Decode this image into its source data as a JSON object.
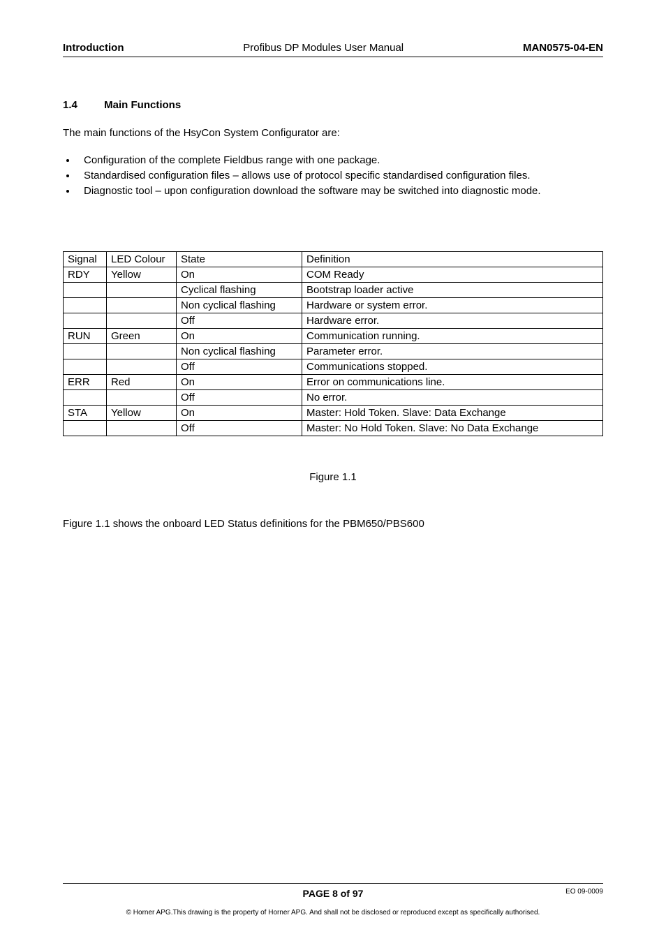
{
  "header": {
    "left": "Introduction",
    "center": "Profibus DP Modules User Manual",
    "right": "MAN0575-04-EN"
  },
  "section": {
    "number": "1.4",
    "title": "Main Functions"
  },
  "intro_text": "The main functions of the HsyCon System Configurator are:",
  "bullets": [
    "Configuration of the complete Fieldbus range with one package.",
    "Standardised configuration files – allows use of protocol specific standardised configuration files.",
    "Diagnostic tool – upon configuration download the software may be switched into diagnostic mode."
  ],
  "table": {
    "headers": [
      "Signal",
      "LED Colour",
      "State",
      "Definition"
    ],
    "rows": [
      [
        "RDY",
        "Yellow",
        "On",
        "COM Ready"
      ],
      [
        "",
        "",
        "Cyclical flashing",
        "Bootstrap loader active"
      ],
      [
        "",
        "",
        "Non cyclical flashing",
        "Hardware or system error."
      ],
      [
        "",
        "",
        "Off",
        "Hardware error."
      ],
      [
        "RUN",
        "Green",
        "On",
        "Communication running."
      ],
      [
        "",
        "",
        "Non cyclical flashing",
        "Parameter error."
      ],
      [
        "",
        "",
        "Off",
        "Communications stopped."
      ],
      [
        "ERR",
        "Red",
        "On",
        "Error on communications line."
      ],
      [
        "",
        "",
        "Off",
        "No error."
      ],
      [
        "STA",
        "Yellow",
        "On",
        "Master: Hold Token. Slave: Data Exchange"
      ],
      [
        "",
        "",
        "Off",
        "Master: No Hold Token. Slave: No Data Exchange"
      ]
    ]
  },
  "figure_caption": "Figure 1.1",
  "after_figure": "Figure 1.1 shows the onboard LED Status definitions for the PBM650/PBS600",
  "footer": {
    "page": "PAGE 8 of 97",
    "eo": "EO 09-0009",
    "copyright": "© Horner APG.This drawing is the property of Horner APG. And shall not be disclosed or reproduced except as specifically authorised."
  }
}
